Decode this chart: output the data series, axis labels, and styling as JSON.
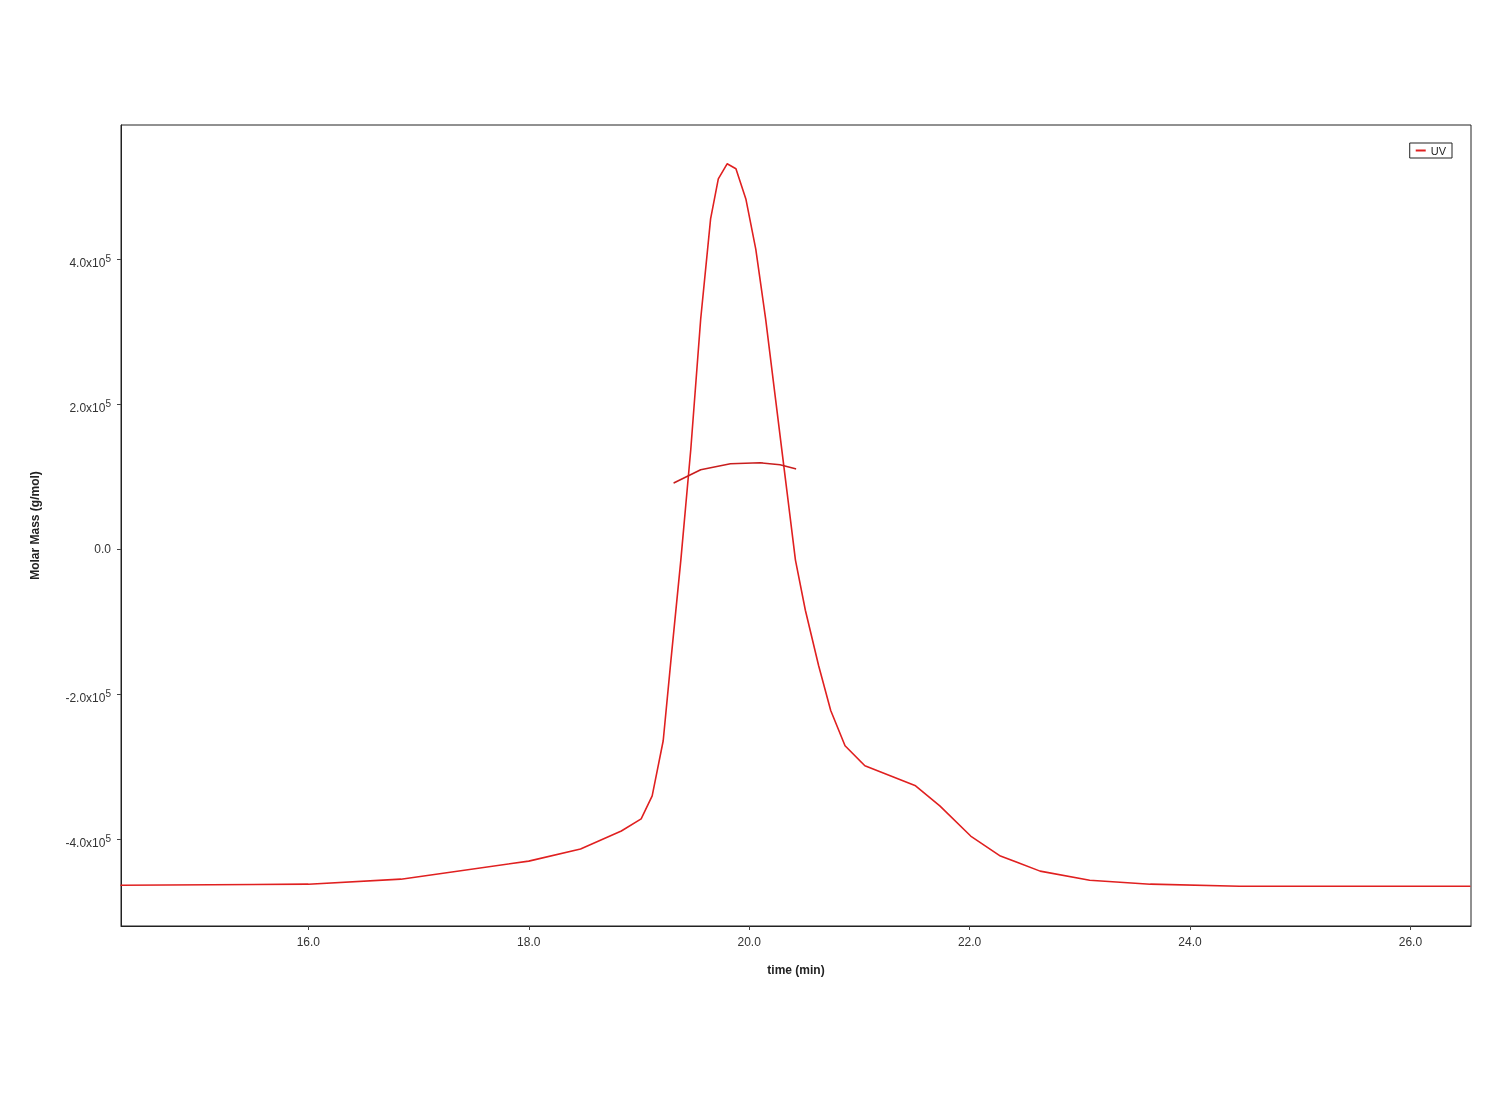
{
  "chart_data": {
    "type": "line",
    "xlabel": "time (min)",
    "ylabel": "Molar Mass (g/mol)",
    "xlim": [
      14.3,
      26.55
    ],
    "ylim": [
      -520000,
      585000
    ],
    "xticks": [
      {
        "value": 16,
        "label": "16.0"
      },
      {
        "value": 18,
        "label": "18.0"
      },
      {
        "value": 20,
        "label": "20.0"
      },
      {
        "value": 22,
        "label": "22.0"
      },
      {
        "value": 24,
        "label": "24.0"
      },
      {
        "value": 26,
        "label": "26.0"
      }
    ],
    "yticks": [
      {
        "value": -400000,
        "label": "-4.0x10$^{5}$"
      },
      {
        "value": -200000,
        "label": "-2.0x10$^{5}$"
      },
      {
        "value": 0,
        "label": "0.0"
      },
      {
        "value": 200000,
        "label": "2.0x10$^{5}$"
      },
      {
        "value": 400000,
        "label": "4.0x10$^{5}$"
      }
    ],
    "grid": false,
    "legend": "top right",
    "marker": "none",
    "line_style": "solid",
    "series": [
      {
        "name": "UV",
        "color": "#e02020",
        "x": [
          14.3,
          16.0,
          16.84,
          18.0,
          18.47,
          18.84,
          19.02,
          19.12,
          19.22,
          19.29,
          19.38,
          19.47,
          19.56,
          19.65,
          19.72,
          19.8,
          19.88,
          19.97,
          20.06,
          20.15,
          20.24,
          20.33,
          20.42,
          20.51,
          20.63,
          20.74,
          20.87,
          21.05,
          21.28,
          21.51,
          21.73,
          22.01,
          22.28,
          22.64,
          23.09,
          23.64,
          24.45,
          26.54
        ],
        "values": [
          -463700,
          -462300,
          -455400,
          -430500,
          -413800,
          -388900,
          -372300,
          -340500,
          -264400,
          -153600,
          -15200,
          137000,
          317000,
          455400,
          510700,
          531500,
          524600,
          483000,
          413800,
          317000,
          206200,
          95500,
          -15200,
          -84400,
          -160600,
          -222800,
          -271300,
          -299000,
          -312800,
          -326600,
          -354300,
          -395900,
          -423500,
          -444300,
          -456800,
          -462300,
          -465100,
          -465100
        ]
      },
      {
        "color": "#c81e1e",
        "x": [
          19.32,
          19.56,
          19.83,
          20.1,
          20.28,
          20.42
        ],
        "values": [
          91400,
          109300,
          117600,
          119000,
          116300,
          110700
        ]
      }
    ]
  }
}
